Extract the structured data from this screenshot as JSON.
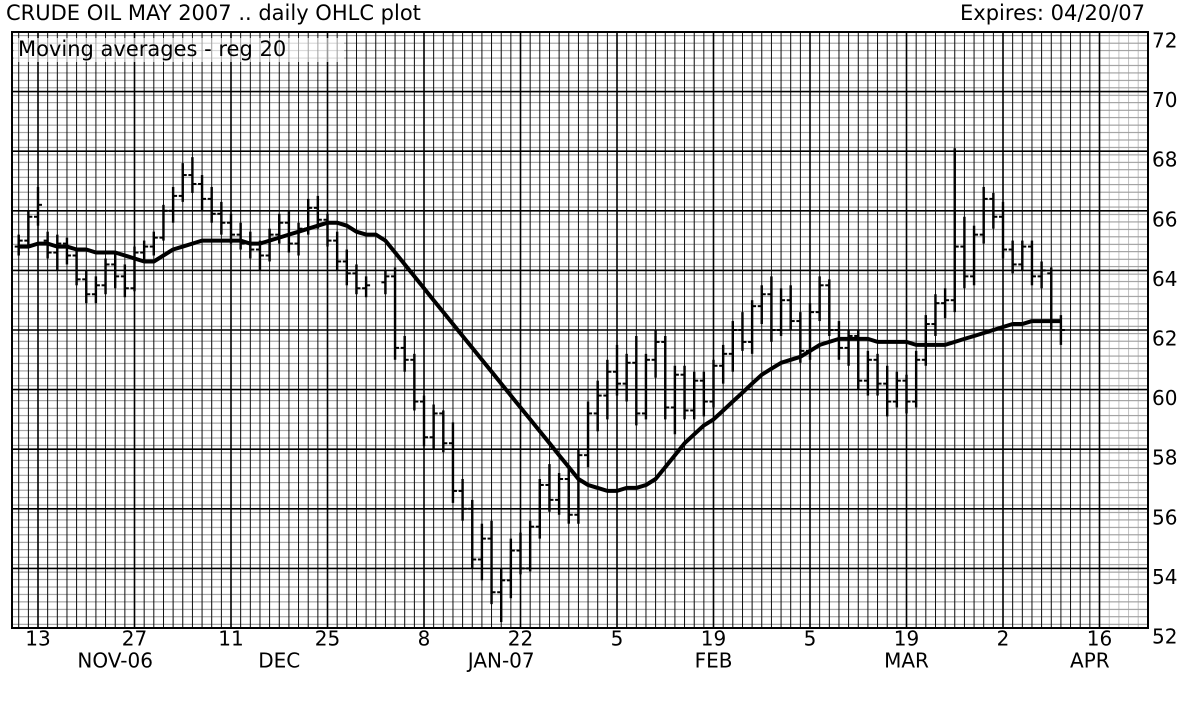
{
  "chart_data": {
    "type": "ohlc",
    "title": "CRUDE OIL MAY 2007 .. daily OHLC plot",
    "subtitle": "Expires: 04/20/07",
    "legend_text": "Moving averages - reg 20",
    "categories": [
      null,
      null,
      "13",
      null,
      null,
      null,
      null,
      null,
      null,
      null,
      null,
      null,
      "27",
      null,
      null,
      null,
      null,
      null,
      null,
      null,
      null,
      null,
      "11",
      null,
      null,
      null,
      null,
      null,
      null,
      null,
      null,
      null,
      "25",
      null,
      null,
      null,
      null,
      null,
      null,
      null,
      null,
      null,
      "8",
      null,
      null,
      null,
      null,
      null,
      null,
      null,
      null,
      null,
      "22",
      null,
      null,
      null,
      null,
      null,
      null,
      null,
      null,
      null,
      "5",
      null,
      null,
      null,
      null,
      null,
      null,
      null,
      null,
      null,
      "19",
      null,
      null,
      null,
      null,
      null,
      null,
      null,
      null,
      null,
      "5",
      null,
      null,
      null,
      null,
      null,
      null,
      null,
      null,
      null,
      "19",
      null,
      null,
      null,
      null,
      null,
      null,
      null,
      null,
      null,
      "2",
      null,
      null,
      null,
      null,
      null,
      null,
      null,
      null,
      null,
      "16"
    ],
    "month_labels": [
      null,
      null,
      null,
      null,
      null,
      null,
      null,
      null,
      null,
      null,
      "NOV-06",
      null,
      null,
      null,
      null,
      null,
      null,
      null,
      null,
      null,
      null,
      null,
      null,
      null,
      null,
      null,
      null,
      "DEC",
      null,
      null,
      null,
      null,
      null,
      null,
      null,
      null,
      null,
      null,
      null,
      null,
      null,
      null,
      null,
      null,
      null,
      null,
      null,
      null,
      null,
      null,
      "JAN-07",
      null,
      null,
      null,
      null,
      null,
      null,
      null,
      null,
      null,
      null,
      null,
      null,
      null,
      null,
      null,
      null,
      null,
      null,
      null,
      null,
      null,
      "FEB",
      null,
      null,
      null,
      null,
      null,
      null,
      null,
      null,
      null,
      null,
      null,
      null,
      null,
      null,
      null,
      null,
      null,
      null,
      null,
      "MAR",
      null,
      null,
      null,
      null,
      null,
      null,
      null,
      null,
      null,
      null,
      null,
      null,
      null,
      null,
      null,
      null,
      null,
      null,
      "APR",
      null
    ],
    "open": [
      64.8,
      65.0,
      65.8,
      65.0,
      64.6,
      64.9,
      64.5,
      63.7,
      63.2,
      63.5,
      64.2,
      63.8,
      63.4,
      64.6,
      64.8,
      65.1,
      66.0,
      66.5,
      67.2,
      66.9,
      66.4,
      65.9,
      65.6,
      65.2,
      64.9,
      64.7,
      64.5,
      65.2,
      65.6,
      64.9,
      65.4,
      66.1,
      65.7,
      65.0,
      64.3,
      63.9,
      63.4,
      null,
      63.6,
      63.8,
      61.4,
      61.0,
      59.6,
      58.4,
      59.2,
      58.2,
      56.6,
      56.0,
      54.3,
      55.0,
      53.2,
      53.6,
      54.6,
      54.0,
      55.4,
      56.8,
      56.3,
      57.0,
      55.8,
      57.8,
      59.2,
      59.8,
      60.6,
      60.2,
      60.9,
      59.2,
      61.0,
      61.6,
      59.4,
      60.5,
      59.3,
      60.3,
      59.6,
      60.8,
      61.2,
      62.0,
      61.6,
      62.8,
      63.2,
      62.0,
      63.0,
      62.3,
      61.3,
      62.6,
      63.5,
      62.0,
      61.4,
      61.8,
      60.3,
      61.0,
      60.2,
      59.6,
      60.3,
      59.6,
      61.0,
      62.2,
      62.9,
      63.0,
      64.8,
      63.8,
      65.2,
      66.4,
      65.8,
      64.7,
      64.2,
      64.8,
      63.8,
      63.9,
      62.3,
      null,
      null,
      null,
      null
    ],
    "high": [
      65.2,
      66.0,
      66.8,
      65.3,
      65.2,
      65.1,
      64.7,
      64.0,
      63.8,
      64.4,
      64.6,
      64.2,
      64.8,
      65.0,
      65.3,
      66.2,
      66.8,
      67.6,
      67.8,
      67.2,
      66.8,
      66.3,
      65.9,
      65.6,
      65.3,
      65.0,
      65.4,
      65.9,
      66.0,
      65.6,
      66.4,
      66.5,
      65.9,
      65.3,
      64.7,
      64.2,
      63.8,
      null,
      64.0,
      64.1,
      61.8,
      61.2,
      59.8,
      59.5,
      59.3,
      58.9,
      57.0,
      56.3,
      55.5,
      55.6,
      54.0,
      55.0,
      55.2,
      55.6,
      57.0,
      57.5,
      57.2,
      57.4,
      58.0,
      59.6,
      60.3,
      61.0,
      61.5,
      61.2,
      61.8,
      61.2,
      62.0,
      61.8,
      60.8,
      60.8,
      60.6,
      60.6,
      61.0,
      61.5,
      62.3,
      62.6,
      63.0,
      63.5,
      63.8,
      63.4,
      63.5,
      62.6,
      62.9,
      63.8,
      63.7,
      62.3,
      62.0,
      62.0,
      61.3,
      61.2,
      60.8,
      60.6,
      60.5,
      61.3,
      62.5,
      63.2,
      63.4,
      68.1,
      65.8,
      65.5,
      66.8,
      66.6,
      66.3,
      65.0,
      65.0,
      65.0,
      64.3,
      64.1,
      62.5,
      null,
      null,
      null,
      null
    ],
    "low": [
      64.5,
      64.8,
      65.5,
      64.4,
      64.0,
      64.2,
      63.5,
      62.9,
      62.9,
      63.2,
      63.4,
      63.1,
      63.3,
      64.3,
      64.5,
      65.0,
      65.6,
      66.3,
      66.6,
      66.0,
      65.6,
      65.2,
      64.9,
      64.7,
      64.4,
      64.0,
      64.3,
      64.9,
      64.6,
      64.5,
      65.2,
      65.4,
      64.8,
      64.0,
      63.5,
      63.2,
      63.1,
      null,
      63.2,
      61.0,
      60.6,
      59.3,
      58.1,
      58.0,
      57.9,
      56.2,
      55.6,
      54.0,
      53.6,
      52.8,
      52.2,
      53.0,
      53.8,
      53.9,
      55.0,
      55.9,
      55.8,
      55.5,
      55.5,
      57.4,
      58.6,
      59.0,
      59.8,
      59.6,
      58.8,
      59.0,
      60.4,
      59.0,
      58.5,
      59.0,
      59.0,
      59.1,
      59.4,
      60.2,
      60.6,
      61.3,
      61.2,
      62.2,
      61.6,
      61.8,
      62.0,
      60.9,
      61.0,
      62.3,
      61.8,
      61.0,
      60.8,
      60.0,
      59.8,
      59.8,
      59.1,
      59.4,
      59.2,
      59.4,
      60.8,
      61.8,
      62.4,
      62.6,
      63.4,
      63.5,
      64.9,
      65.4,
      64.4,
      63.9,
      64.0,
      63.5,
      63.4,
      62.0,
      61.5,
      null,
      null,
      null,
      null
    ],
    "close": [
      65.0,
      65.8,
      66.2,
      64.6,
      64.9,
      64.5,
      63.7,
      63.2,
      63.5,
      64.2,
      63.8,
      63.4,
      64.6,
      64.8,
      65.1,
      66.0,
      66.5,
      67.2,
      66.9,
      66.4,
      65.9,
      65.6,
      65.2,
      64.9,
      64.7,
      64.5,
      65.2,
      65.6,
      64.9,
      65.4,
      66.1,
      65.7,
      65.0,
      64.3,
      63.9,
      63.4,
      63.5,
      null,
      63.8,
      61.4,
      61.0,
      59.6,
      58.4,
      59.2,
      58.2,
      56.6,
      56.0,
      54.3,
      55.0,
      53.2,
      53.6,
      54.6,
      54.0,
      55.4,
      56.8,
      56.3,
      57.0,
      55.8,
      57.8,
      59.2,
      59.8,
      60.6,
      60.2,
      60.9,
      59.2,
      61.0,
      61.6,
      59.4,
      60.5,
      59.3,
      60.3,
      59.6,
      60.8,
      61.2,
      62.0,
      61.6,
      62.8,
      63.2,
      62.0,
      63.0,
      62.3,
      61.3,
      62.6,
      63.5,
      62.0,
      61.4,
      61.8,
      60.3,
      61.0,
      60.2,
      59.6,
      60.3,
      59.6,
      61.0,
      62.2,
      62.9,
      63.0,
      64.8,
      63.8,
      65.2,
      66.4,
      65.8,
      64.7,
      64.2,
      64.8,
      63.8,
      64.0,
      62.3,
      62.0,
      null,
      null,
      null,
      null
    ],
    "moving_average": [
      64.8,
      64.8,
      64.9,
      64.9,
      64.8,
      64.8,
      64.7,
      64.7,
      64.6,
      64.6,
      64.6,
      64.5,
      64.4,
      64.3,
      64.3,
      64.5,
      64.7,
      64.8,
      64.9,
      65.0,
      65.0,
      65.0,
      65.0,
      65.0,
      64.9,
      64.9,
      65.0,
      65.1,
      65.2,
      65.3,
      65.4,
      65.5,
      65.6,
      65.6,
      65.5,
      65.3,
      65.2,
      65.2,
      65.0,
      64.6,
      64.2,
      63.8,
      63.4,
      63.0,
      62.6,
      62.2,
      61.8,
      61.4,
      61.0,
      60.6,
      60.2,
      59.8,
      59.4,
      59.0,
      58.6,
      58.2,
      57.8,
      57.4,
      57.0,
      56.8,
      56.7,
      56.6,
      56.6,
      56.7,
      56.7,
      56.8,
      57.0,
      57.4,
      57.8,
      58.2,
      58.5,
      58.8,
      59.0,
      59.3,
      59.6,
      59.9,
      60.2,
      60.5,
      60.7,
      60.9,
      61.0,
      61.1,
      61.3,
      61.5,
      61.6,
      61.7,
      61.7,
      61.7,
      61.7,
      61.6,
      61.6,
      61.6,
      61.6,
      61.5,
      61.5,
      61.5,
      61.5,
      61.6,
      61.7,
      61.8,
      61.9,
      62.0,
      62.1,
      62.2,
      62.2,
      62.3,
      62.3,
      62.3,
      62.3,
      null,
      null,
      null,
      null
    ],
    "color": "#000000",
    "ylim": [
      52,
      72
    ],
    "yticks": [
      52,
      54,
      56,
      58,
      60,
      62,
      64,
      66,
      68,
      70,
      72
    ],
    "grid": true
  }
}
